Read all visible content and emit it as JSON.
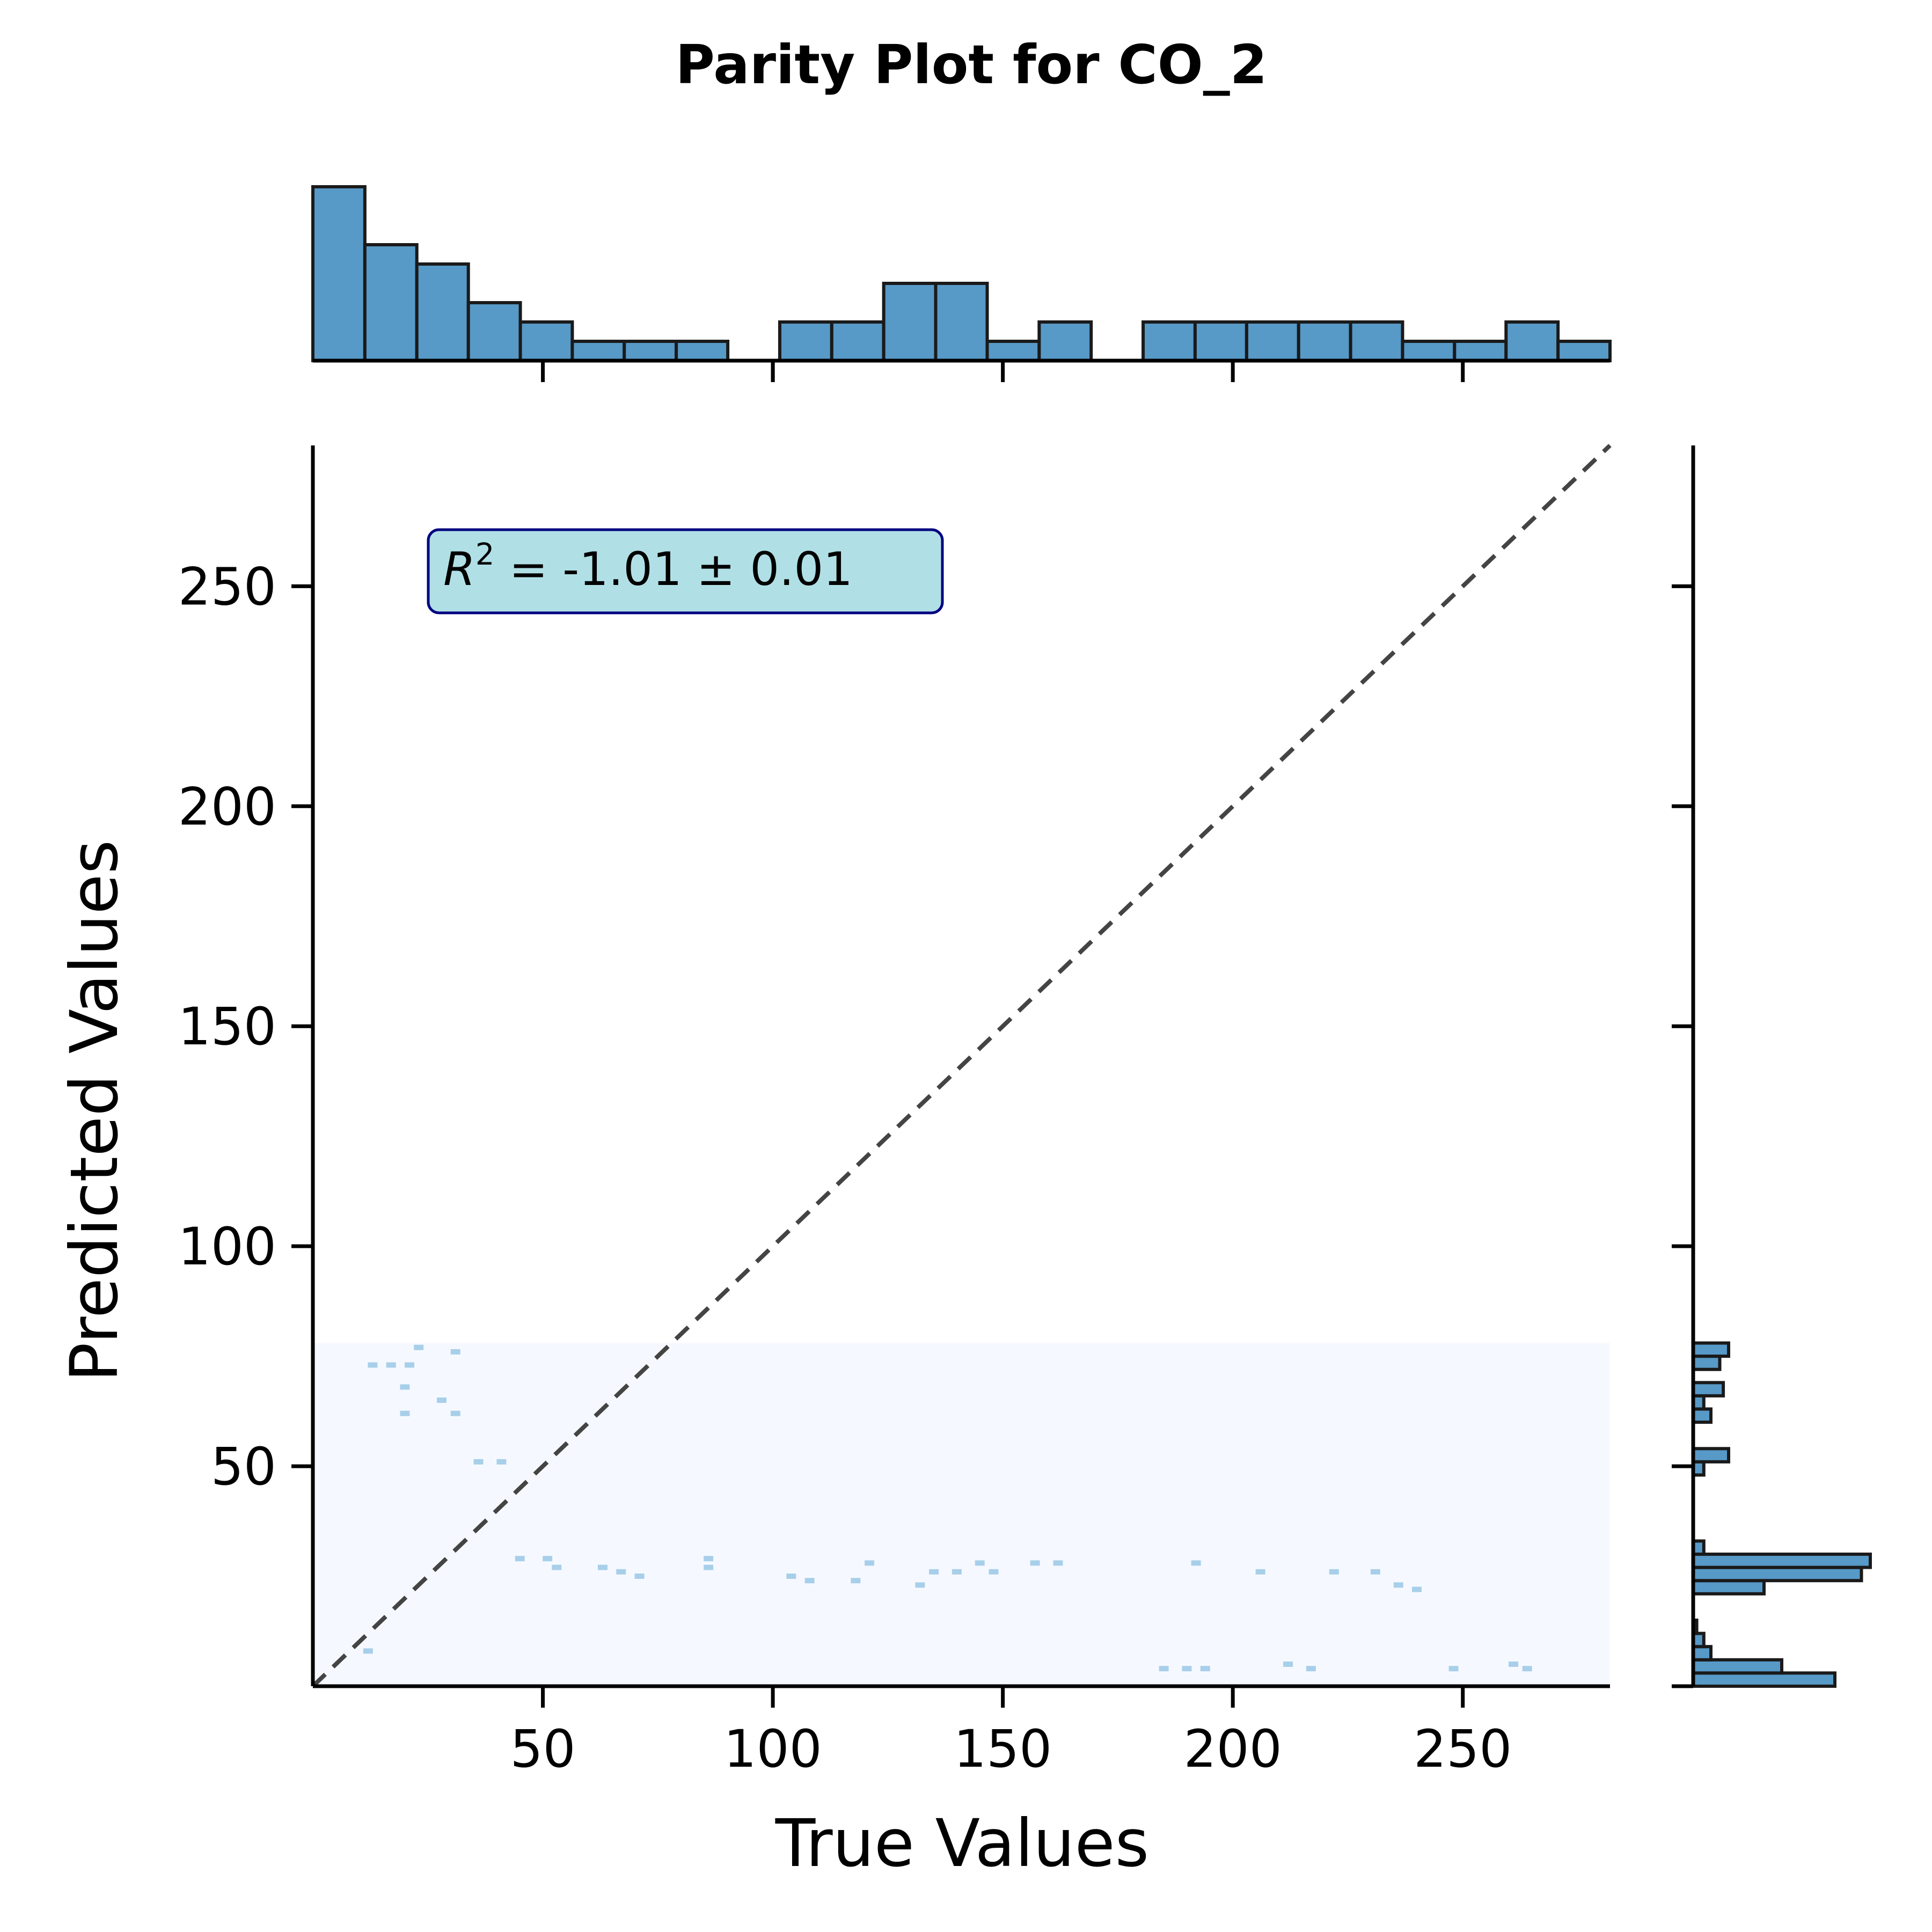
{
  "chart_data": {
    "type": "scatter",
    "title": "Parity Plot for CO_2",
    "xlabel": "True Values",
    "ylabel": "Predicted Values",
    "xlim": [
      0,
      282
    ],
    "ylim": [
      0,
      282
    ],
    "xticks": [
      50,
      100,
      150,
      200,
      250
    ],
    "yticks": [
      50,
      100,
      150,
      200,
      250
    ],
    "annotation": {
      "symbol": "R",
      "superscript": "2",
      "text": " = -1.01 ± 0.01",
      "box_color": "#b0e0e6",
      "edge_color": "#000080"
    },
    "parity_line": {
      "from": [
        0,
        0
      ],
      "to": [
        282,
        282
      ],
      "style": "dashed",
      "color": "#444444"
    },
    "hexbin_region": {
      "x": [
        0,
        282
      ],
      "y": [
        0,
        78
      ],
      "color": "#f5f9ff"
    },
    "points": [
      [
        12,
        8
      ],
      [
        23,
        77
      ],
      [
        31,
        76
      ],
      [
        13,
        73
      ],
      [
        17,
        73
      ],
      [
        21,
        73
      ],
      [
        20,
        68
      ],
      [
        28,
        65
      ],
      [
        20,
        62
      ],
      [
        31,
        62
      ],
      [
        36,
        51
      ],
      [
        41,
        51
      ],
      [
        45,
        29
      ],
      [
        51,
        29
      ],
      [
        53,
        27
      ],
      [
        63,
        27
      ],
      [
        67,
        26
      ],
      [
        71,
        25
      ],
      [
        86,
        27
      ],
      [
        86,
        29
      ],
      [
        104,
        25
      ],
      [
        108,
        24
      ],
      [
        118,
        24
      ],
      [
        121,
        28
      ],
      [
        132,
        23
      ],
      [
        135,
        26
      ],
      [
        140,
        26
      ],
      [
        145,
        28
      ],
      [
        148,
        26
      ],
      [
        157,
        28
      ],
      [
        162,
        28
      ],
      [
        185,
        4
      ],
      [
        190,
        4
      ],
      [
        194,
        4
      ],
      [
        192,
        28
      ],
      [
        206,
        26
      ],
      [
        212,
        5
      ],
      [
        217,
        4
      ],
      [
        222,
        26
      ],
      [
        231,
        26
      ],
      [
        236,
        23
      ],
      [
        240,
        22
      ],
      [
        248,
        4
      ],
      [
        261,
        5
      ],
      [
        264,
        4
      ]
    ],
    "x_histogram": {
      "bin_edges": [
        0,
        11.3,
        22.6,
        33.8,
        45.1,
        56.4,
        67.7,
        79,
        90.2,
        101.5,
        112.8,
        124.1,
        135.4,
        146.6,
        157.9,
        169.2,
        180.5,
        191.8,
        203,
        214.3,
        225.6,
        236.9,
        248.2,
        259.4,
        270.7,
        282
      ],
      "counts": [
        9,
        6,
        5,
        3,
        2,
        1,
        1,
        1,
        0,
        2,
        2,
        4,
        4,
        1,
        2,
        0,
        2,
        2,
        2,
        2,
        2,
        1,
        1,
        2,
        1
      ],
      "color": "#5799c7"
    },
    "y_histogram": {
      "bin_edges": [
        0,
        3,
        6,
        9,
        12,
        15,
        18,
        21,
        24,
        27,
        30,
        33,
        36,
        39,
        42,
        45,
        48,
        51,
        54,
        57,
        60,
        63,
        66,
        69,
        72,
        75,
        78
      ],
      "counts": [
        8,
        5,
        1,
        0.6,
        0.2,
        0,
        0,
        4,
        9.5,
        10,
        0.6,
        0,
        0,
        0,
        0,
        0,
        0.6,
        2,
        0,
        0,
        1,
        0.6,
        1.7,
        0,
        1.5,
        2
      ],
      "color": "#5799c7"
    }
  }
}
